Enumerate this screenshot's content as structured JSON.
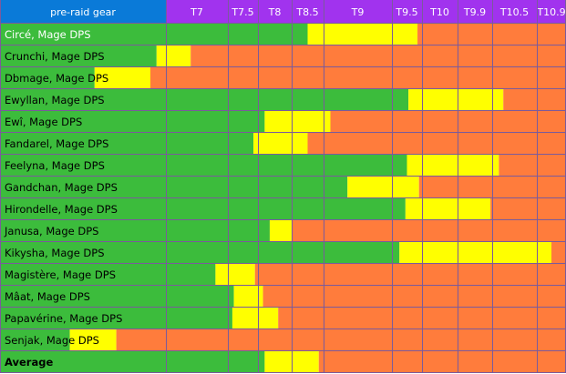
{
  "chart_data": {
    "type": "bar",
    "title": "",
    "header_label": "pre-raid gear",
    "tiers": [
      "T7",
      "T7.5",
      "T8",
      "T8.5",
      "T9",
      "T9.5",
      "T10",
      "T9.9",
      "T10.5",
      "T10.9"
    ],
    "legend": [],
    "colors": {
      "header_label_bg": "#0a7ad8",
      "header_tier_bg": "#a133ee",
      "green": "#3cbc3c",
      "yellow": "#ffff00",
      "orange": "#ff7c3c",
      "grid": "#7b5a9c"
    },
    "series_note": "Each row: tier reached in green (ends at green_end), progression in yellow (until yellow_end), rest orange. Values in tier-axis units (index 0 = T7 boundary start).",
    "rows": [
      {
        "name": "Circé, Mage DPS",
        "green_end": 3.5,
        "yellow_end": 5.85
      },
      {
        "name": "Crunchi, Mage DPS",
        "green_end": -0.15,
        "yellow_end": 0.4
      },
      {
        "name": "Dbmage, Mage DPS",
        "green_end": -1.15,
        "yellow_end": -0.25
      },
      {
        "name": "Ewyllan, Mage DPS",
        "green_end": 5.55,
        "yellow_end": 8.25
      },
      {
        "name": "Ewî, Mage DPS",
        "green_end": 2.2,
        "yellow_end": 4.1
      },
      {
        "name": "Fandarel, Mage DPS",
        "green_end": 1.85,
        "yellow_end": 3.5
      },
      {
        "name": "Feelyna, Mage DPS",
        "green_end": 5.5,
        "yellow_end": 8.15
      },
      {
        "name": "Gandchan, Mage DPS",
        "green_end": 4.35,
        "yellow_end": 5.9
      },
      {
        "name": "Hirondelle, Mage DPS",
        "green_end": 5.45,
        "yellow_end": 7.95
      },
      {
        "name": "Janusa, Mage DPS",
        "green_end": 2.35,
        "yellow_end": 3.0
      },
      {
        "name": "Kikysha, Mage DPS",
        "green_end": 5.25,
        "yellow_end": 9.5
      },
      {
        "name": "Magistère, Mage DPS",
        "green_end": 0.8,
        "yellow_end": 1.9
      },
      {
        "name": "Mâat, Mage DPS",
        "green_end": 1.2,
        "yellow_end": 2.15
      },
      {
        "name": "Papavérine, Mage DPS",
        "green_end": 1.15,
        "yellow_end": 2.6
      },
      {
        "name": "Senjak, Mage DPS",
        "green_end": -1.55,
        "yellow_end": -0.8
      },
      {
        "name": "Average",
        "green_end": 2.2,
        "yellow_end": 3.85
      }
    ]
  }
}
